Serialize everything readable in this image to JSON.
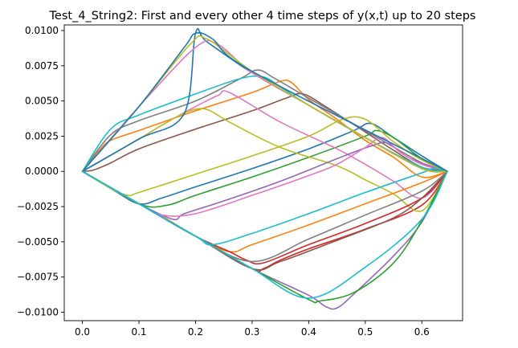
{
  "chart_data": {
    "type": "line",
    "title": "Test_4_String2: First and every other 4 time steps of y(x,t) up to 20 steps",
    "xlabel": "",
    "ylabel": "",
    "xlim": [
      -0.032,
      0.672
    ],
    "ylim": [
      -0.0106,
      0.0104
    ],
    "x_ticks": [
      0.0,
      0.1,
      0.2,
      0.3,
      0.4,
      0.5,
      0.6
    ],
    "x_tick_labels": [
      "0.0",
      "0.1",
      "0.2",
      "0.3",
      "0.4",
      "0.5",
      "0.6"
    ],
    "y_ticks": [
      -0.01,
      -0.0075,
      -0.005,
      -0.0025,
      0.0,
      0.0025,
      0.005,
      0.0075,
      0.01
    ],
    "y_tick_labels": [
      "−0.0100",
      "−0.0075",
      "−0.0050",
      "−0.0025",
      "0.0000",
      "0.0025",
      "0.0050",
      "0.0075",
      "0.0100"
    ],
    "grid": false,
    "series": [
      {
        "color": "#1f77b4",
        "points": [
          [
            0,
            0
          ],
          [
            0.05,
            -0.0012
          ],
          [
            0.1,
            -0.0023
          ],
          [
            0.14,
            -0.0019
          ],
          [
            0.2,
            -0.0011
          ],
          [
            0.3,
            0.0002
          ],
          [
            0.4,
            0.0016
          ],
          [
            0.48,
            0.0029
          ],
          [
            0.51,
            0.0034
          ],
          [
            0.55,
            0.0024
          ],
          [
            0.6,
            0.0011
          ],
          [
            0.645,
            0
          ]
        ]
      },
      {
        "color": "#ff7f0e",
        "points": [
          [
            0,
            0
          ],
          [
            0.03,
            0.0015
          ],
          [
            0.05,
            0.0022
          ],
          [
            0.1,
            0.0029
          ],
          [
            0.2,
            0.0043
          ],
          [
            0.3,
            0.0056
          ],
          [
            0.35,
            0.0064
          ],
          [
            0.37,
            0.0063
          ],
          [
            0.4,
            0.0051
          ],
          [
            0.45,
            0.0037
          ],
          [
            0.5,
            0.0022
          ],
          [
            0.55,
            0.001
          ],
          [
            0.6,
            -0.0004
          ],
          [
            0.645,
            0
          ]
        ]
      },
      {
        "color": "#2ca02c",
        "points": [
          [
            0,
            0
          ],
          [
            0.1,
            -0.0023
          ],
          [
            0.15,
            -0.0024
          ],
          [
            0.2,
            -0.0017
          ],
          [
            0.3,
            -0.0004
          ],
          [
            0.4,
            0.001
          ],
          [
            0.5,
            0.0025
          ],
          [
            0.52,
            0.0029
          ],
          [
            0.55,
            0.0024
          ],
          [
            0.6,
            0.0009
          ],
          [
            0.645,
            0
          ]
        ]
      },
      {
        "color": "#d62728",
        "points": [
          [
            0,
            0
          ],
          [
            0.1,
            -0.0023
          ],
          [
            0.2,
            -0.0046
          ],
          [
            0.3,
            -0.0069
          ],
          [
            0.32,
            -0.0069
          ],
          [
            0.35,
            -0.0063
          ],
          [
            0.4,
            -0.0055
          ],
          [
            0.5,
            -0.0041
          ],
          [
            0.6,
            -0.0024
          ],
          [
            0.645,
            0
          ]
        ]
      },
      {
        "color": "#9467bd",
        "points": [
          [
            0,
            0
          ],
          [
            0.1,
            -0.0023
          ],
          [
            0.2,
            -0.0046
          ],
          [
            0.3,
            -0.0069
          ],
          [
            0.4,
            -0.0088
          ],
          [
            0.43,
            -0.0096
          ],
          [
            0.45,
            -0.0097
          ],
          [
            0.48,
            -0.0087
          ],
          [
            0.55,
            -0.006
          ],
          [
            0.6,
            -0.0036
          ],
          [
            0.645,
            0
          ]
        ]
      },
      {
        "color": "#8c564b",
        "points": [
          [
            0,
            0
          ],
          [
            0.02,
            0.0001
          ],
          [
            0.05,
            0.0006
          ],
          [
            0.1,
            0.0016
          ],
          [
            0.2,
            0.003
          ],
          [
            0.3,
            0.0043
          ],
          [
            0.36,
            0.0052
          ],
          [
            0.39,
            0.0055
          ],
          [
            0.43,
            0.0046
          ],
          [
            0.5,
            0.0028
          ],
          [
            0.55,
            0.0015
          ],
          [
            0.6,
            0.0003
          ],
          [
            0.645,
            0
          ]
        ]
      },
      {
        "color": "#e377c2",
        "points": [
          [
            0,
            0
          ],
          [
            0.04,
            0.0009
          ],
          [
            0.1,
            0.0023
          ],
          [
            0.15,
            0.0035
          ],
          [
            0.2,
            0.0046
          ],
          [
            0.24,
            0.0054
          ],
          [
            0.26,
            0.0056
          ],
          [
            0.35,
            0.0035
          ],
          [
            0.45,
            0.0016
          ],
          [
            0.5,
            0.0005
          ],
          [
            0.55,
            -0.0007
          ],
          [
            0.6,
            -0.0019
          ],
          [
            0.645,
            0
          ]
        ]
      },
      {
        "color": "#7f7f7f",
        "points": [
          [
            0,
            0
          ],
          [
            0.05,
            0.0026
          ],
          [
            0.1,
            0.0036
          ],
          [
            0.2,
            0.005
          ],
          [
            0.28,
            0.0066
          ],
          [
            0.31,
            0.0072
          ],
          [
            0.34,
            0.0066
          ],
          [
            0.4,
            0.0052
          ],
          [
            0.5,
            0.0029
          ],
          [
            0.6,
            0.0006
          ],
          [
            0.645,
            0
          ]
        ]
      },
      {
        "color": "#bcbd22",
        "points": [
          [
            0,
            0
          ],
          [
            0.04,
            0.0009
          ],
          [
            0.1,
            0.0023
          ],
          [
            0.15,
            0.0035
          ],
          [
            0.19,
            0.0043
          ],
          [
            0.22,
            0.0044
          ],
          [
            0.26,
            0.0035
          ],
          [
            0.35,
            0.0017
          ],
          [
            0.45,
            0.0004
          ],
          [
            0.5,
            -0.0006
          ],
          [
            0.55,
            -0.0016
          ],
          [
            0.6,
            -0.0028
          ],
          [
            0.645,
            0
          ]
        ]
      },
      {
        "color": "#17becf",
        "points": [
          [
            0,
            0
          ],
          [
            0.05,
            0.003
          ],
          [
            0.1,
            0.004
          ],
          [
            0.2,
            0.0055
          ],
          [
            0.28,
            0.0066
          ],
          [
            0.32,
            0.0067
          ],
          [
            0.35,
            0.006
          ],
          [
            0.4,
            0.0047
          ],
          [
            0.5,
            0.0024
          ],
          [
            0.6,
            0.0003
          ],
          [
            0.645,
            0
          ]
        ]
      },
      {
        "color": "#1f77b4",
        "points": [
          [
            0,
            0
          ],
          [
            0.1,
            0.0023
          ],
          [
            0.18,
            0.0041
          ],
          [
            0.2,
            0.0098
          ],
          [
            0.22,
            0.0092
          ],
          [
            0.3,
            0.007
          ],
          [
            0.4,
            0.0047
          ],
          [
            0.5,
            0.0024
          ],
          [
            0.6,
            0.0002
          ],
          [
            0.645,
            0
          ]
        ]
      },
      {
        "color": "#ff7f0e",
        "points": [
          [
            0,
            0
          ],
          [
            0.05,
            -0.0012
          ],
          [
            0.1,
            -0.0023
          ],
          [
            0.15,
            -0.0034
          ],
          [
            0.2,
            -0.0046
          ],
          [
            0.26,
            -0.0057
          ],
          [
            0.3,
            -0.0052
          ],
          [
            0.4,
            -0.0038
          ],
          [
            0.5,
            -0.0023
          ],
          [
            0.6,
            -0.0008
          ],
          [
            0.645,
            0
          ]
        ]
      },
      {
        "color": "#2ca02c",
        "points": [
          [
            0,
            0
          ],
          [
            0.1,
            -0.0023
          ],
          [
            0.2,
            -0.0046
          ],
          [
            0.3,
            -0.0069
          ],
          [
            0.4,
            -0.0091
          ],
          [
            0.42,
            -0.0092
          ],
          [
            0.48,
            -0.0086
          ],
          [
            0.55,
            -0.0065
          ],
          [
            0.6,
            -0.0035
          ],
          [
            0.645,
            0
          ]
        ]
      },
      {
        "color": "#d62728",
        "points": [
          [
            0,
            0
          ],
          [
            0.1,
            -0.0023
          ],
          [
            0.2,
            -0.0046
          ],
          [
            0.26,
            -0.0057
          ],
          [
            0.29,
            -0.0063
          ],
          [
            0.32,
            -0.0065
          ],
          [
            0.4,
            -0.0052
          ],
          [
            0.5,
            -0.0037
          ],
          [
            0.6,
            -0.0019
          ],
          [
            0.645,
            0
          ]
        ]
      },
      {
        "color": "#9467bd",
        "points": [
          [
            0,
            0
          ],
          [
            0.05,
            -0.0012
          ],
          [
            0.1,
            -0.0023
          ],
          [
            0.16,
            -0.0034
          ],
          [
            0.18,
            -0.003
          ],
          [
            0.25,
            -0.0021
          ],
          [
            0.35,
            -0.0007
          ],
          [
            0.45,
            0.0009
          ],
          [
            0.51,
            0.0018
          ],
          [
            0.54,
            0.002
          ],
          [
            0.58,
            0.0009
          ],
          [
            0.645,
            0
          ]
        ]
      },
      {
        "color": "#8c564b",
        "points": [
          [
            0,
            0
          ],
          [
            0.1,
            -0.0023
          ],
          [
            0.2,
            -0.0046
          ],
          [
            0.3,
            -0.0069
          ],
          [
            0.35,
            -0.0064
          ],
          [
            0.45,
            -0.0049
          ],
          [
            0.55,
            -0.0033
          ],
          [
            0.6,
            -0.0019
          ],
          [
            0.645,
            0
          ]
        ]
      },
      {
        "color": "#e377c2",
        "points": [
          [
            0,
            0
          ],
          [
            0.1,
            -0.0023
          ],
          [
            0.14,
            -0.0031
          ],
          [
            0.2,
            -0.003
          ],
          [
            0.3,
            -0.0017
          ],
          [
            0.4,
            -0.0003
          ],
          [
            0.45,
            0.0005
          ],
          [
            0.5,
            0.0017
          ],
          [
            0.53,
            0.0024
          ],
          [
            0.56,
            0.0014
          ],
          [
            0.6,
            0.0005
          ],
          [
            0.645,
            0
          ]
        ]
      },
      {
        "color": "#7f7f7f",
        "points": [
          [
            0,
            0
          ],
          [
            0.1,
            -0.0023
          ],
          [
            0.2,
            -0.0046
          ],
          [
            0.3,
            -0.0064
          ],
          [
            0.4,
            -0.0048
          ],
          [
            0.5,
            -0.0031
          ],
          [
            0.6,
            -0.0014
          ],
          [
            0.645,
            0
          ]
        ]
      },
      {
        "color": "#bcbd22",
        "points": [
          [
            0,
            0
          ],
          [
            0.05,
            -0.0012
          ],
          [
            0.08,
            -0.0017
          ],
          [
            0.1,
            -0.0015
          ],
          [
            0.2,
            -0.0002
          ],
          [
            0.3,
            0.0011
          ],
          [
            0.4,
            0.0025
          ],
          [
            0.46,
            0.0037
          ],
          [
            0.5,
            0.0037
          ],
          [
            0.55,
            0.0021
          ],
          [
            0.6,
            0.0008
          ],
          [
            0.645,
            0
          ]
        ]
      },
      {
        "color": "#17becf",
        "points": [
          [
            0,
            0
          ],
          [
            0.1,
            -0.0023
          ],
          [
            0.2,
            -0.0046
          ],
          [
            0.23,
            -0.0052
          ],
          [
            0.3,
            -0.0044
          ],
          [
            0.4,
            -0.003
          ],
          [
            0.5,
            -0.0015
          ],
          [
            0.6,
            -0.0001
          ],
          [
            0.62,
            0.0002
          ],
          [
            0.645,
            0
          ]
        ]
      },
      {
        "color": "#e377c2",
        "points": [
          [
            0,
            0
          ],
          [
            0.1,
            0.0046
          ],
          [
            0.2,
            0.0088
          ],
          [
            0.24,
            0.009
          ],
          [
            0.3,
            0.007
          ],
          [
            0.4,
            0.0047
          ],
          [
            0.5,
            0.0024
          ],
          [
            0.6,
            0.0002
          ],
          [
            0.645,
            0
          ]
        ]
      },
      {
        "color": "#bcbd22",
        "points": [
          [
            0,
            0
          ],
          [
            0.1,
            0.0046
          ],
          [
            0.19,
            0.009
          ],
          [
            0.22,
            0.0094
          ],
          [
            0.3,
            0.0071
          ],
          [
            0.4,
            0.0047
          ],
          [
            0.5,
            0.0024
          ],
          [
            0.6,
            0.0002
          ],
          [
            0.645,
            0
          ]
        ]
      },
      {
        "color": "#1f77b4",
        "points": [
          [
            0,
            0
          ],
          [
            0.1,
            0.0046
          ],
          [
            0.18,
            0.0088
          ],
          [
            0.2,
            0.0098
          ],
          [
            0.23,
            0.0094
          ],
          [
            0.3,
            0.0071
          ],
          [
            0.645,
            0
          ]
        ]
      },
      {
        "color": "#17becf",
        "points": [
          [
            0,
            0
          ],
          [
            0.1,
            -0.0023
          ],
          [
            0.2,
            -0.0046
          ],
          [
            0.3,
            -0.0069
          ],
          [
            0.4,
            -0.009
          ],
          [
            0.5,
            -0.0068
          ],
          [
            0.6,
            -0.0034
          ],
          [
            0.645,
            0
          ]
        ]
      }
    ]
  }
}
